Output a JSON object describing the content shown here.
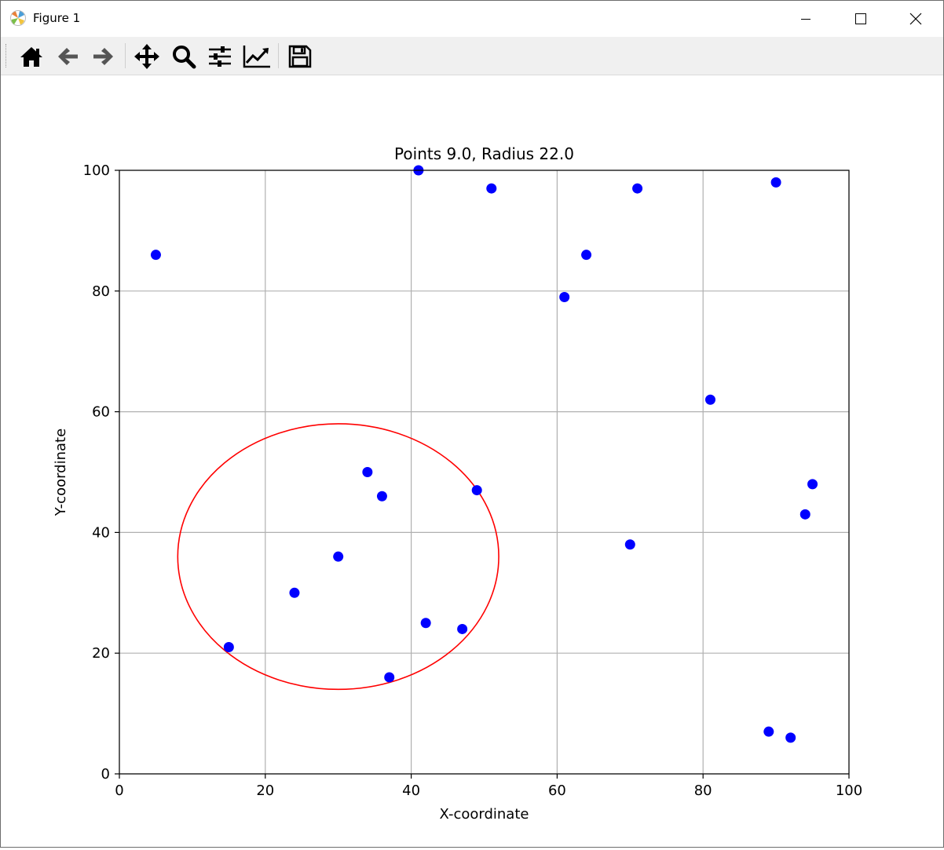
{
  "window": {
    "title": "Figure 1",
    "controls": [
      "minimize-icon",
      "maximize-icon",
      "close-icon"
    ]
  },
  "toolbar": {
    "buttons": [
      {
        "name": "home",
        "icon": "home-icon"
      },
      {
        "name": "back",
        "icon": "arrow-left-icon"
      },
      {
        "name": "forward",
        "icon": "arrow-right-icon"
      },
      {
        "name": "pan",
        "icon": "move-icon"
      },
      {
        "name": "zoom",
        "icon": "magnifier-icon"
      },
      {
        "name": "configure-subplots",
        "icon": "sliders-icon"
      },
      {
        "name": "edit-axes",
        "icon": "line-chart-icon"
      },
      {
        "name": "save",
        "icon": "floppy-disk-icon"
      }
    ]
  },
  "colors": {
    "points": "#0000ff",
    "circle": "#ff0000",
    "grid": "#b0b0b0",
    "axes": "#000000"
  },
  "chart_data": {
    "type": "scatter",
    "title": "Points 9.0, Radius 22.0",
    "xlabel": "X-coordinate",
    "ylabel": "Y-coordinate",
    "xlim": [
      0,
      100
    ],
    "ylim": [
      0,
      100
    ],
    "xticks": [
      0,
      20,
      40,
      60,
      80,
      100
    ],
    "yticks": [
      0,
      20,
      40,
      60,
      80,
      100
    ],
    "grid": true,
    "series": [
      {
        "marker": "circle",
        "points": [
          [
            5,
            86
          ],
          [
            41,
            100
          ],
          [
            51,
            97
          ],
          [
            71,
            97
          ],
          [
            90,
            98
          ],
          [
            64,
            86
          ],
          [
            61,
            79
          ],
          [
            81,
            62
          ],
          [
            34,
            50
          ],
          [
            36,
            46
          ],
          [
            49,
            47
          ],
          [
            95,
            48
          ],
          [
            94,
            43
          ],
          [
            30,
            36
          ],
          [
            70,
            38
          ],
          [
            24,
            30
          ],
          [
            42,
            25
          ],
          [
            47,
            24
          ],
          [
            15,
            21
          ],
          [
            37,
            16
          ],
          [
            89,
            7
          ],
          [
            92,
            6
          ]
        ]
      }
    ],
    "circle": {
      "center": [
        30,
        36
      ],
      "radius": 22
    }
  }
}
